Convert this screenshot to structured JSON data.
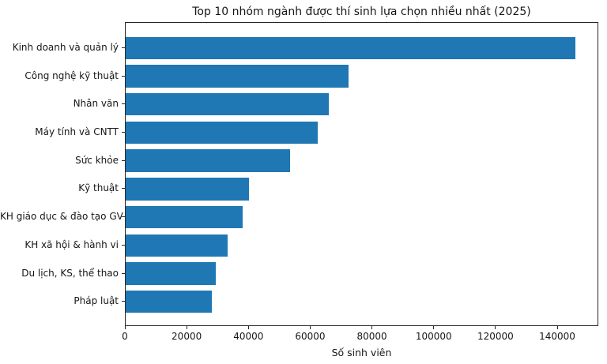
{
  "chart_data": {
    "type": "bar",
    "orientation": "horizontal",
    "title": "Top 10 nhóm ngành được thí sinh lựa chọn nhiều nhất (2025)",
    "xlabel": "Số sinh viên",
    "ylabel": "",
    "categories": [
      "Kinh doanh và quản lý",
      "Công nghệ kỹ thuật",
      "Nhân văn",
      "Máy tính và CNTT",
      "Sức khỏe",
      "Kỹ thuật",
      "KH giáo dục & đào tạo GV",
      "KH xã hội & hành vi",
      "Du lịch, KS, thể thao",
      "Pháp luật"
    ],
    "values": [
      146000,
      72500,
      66000,
      62500,
      53500,
      40000,
      38000,
      33000,
      29300,
      28000
    ],
    "xlim": [
      0,
      153300
    ],
    "xticks": [
      0,
      20000,
      40000,
      60000,
      80000,
      100000,
      120000,
      140000
    ],
    "bar_color": "#1f77b4",
    "grid": false,
    "legend": false
  }
}
